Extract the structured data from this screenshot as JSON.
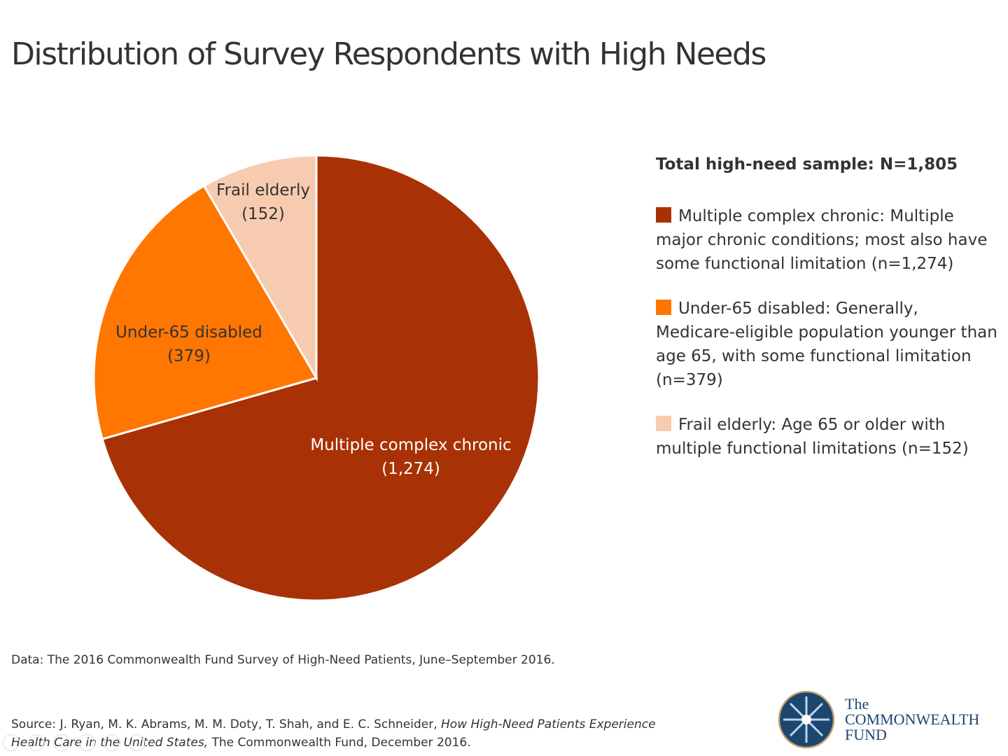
{
  "title": "Distribution of Survey Respondents with High Needs",
  "chart_data": {
    "type": "pie",
    "title": "Distribution of Survey Respondents with High Needs",
    "start_angle": "12 o'clock, clockwise",
    "slices": [
      {
        "label": "Multiple complex chronic",
        "value": 1274,
        "value_label": "(1,274)",
        "color": "#a83205",
        "label_color": "#ffffff"
      },
      {
        "label": "Under-65 disabled",
        "value": 379,
        "value_label": "(379)",
        "color": "#ff7600",
        "label_color": "#333333"
      },
      {
        "label": "Frail elderly",
        "value": 152,
        "value_label": "(152)",
        "color": "#f7cbb0",
        "label_color": "#333333"
      }
    ]
  },
  "legend": {
    "total": "Total high-need sample: N=1,805",
    "items": [
      {
        "text": "Multiple complex chronic: Multiple major chronic conditions; most also have some functional limitation (n=1,274)",
        "color": "#a83205"
      },
      {
        "text": "Under-65 disabled: Generally, Medicare-eligible population younger than age 65, with some functional limitation (n=379)",
        "color": "#ff7600"
      },
      {
        "text": "Frail elderly: Age 65 or older with multiple functional limitations (n=152)",
        "color": "#f7cbb0"
      }
    ]
  },
  "data_note": "Data: The 2016 Commonwealth Fund Survey of High-Need Patients, June–September 2016.",
  "source": {
    "prefix": "Source: J. Ryan, M. K. Abrams, M. M. Doty, T. Shah, and E. C. Schneider, ",
    "title_italic": "How High-Need Patients Experience Health Care in the United States,",
    "suffix": " The Commonwealth Fund, December 2016."
  },
  "share_icons": [
    "facebook-icon",
    "twitter-icon",
    "pinterest-icon",
    "linkedin-icon",
    "search-icon",
    "link-icon"
  ],
  "logo": {
    "line1": "The",
    "line2": "COMMONWEALTH",
    "line3": "FUND"
  }
}
